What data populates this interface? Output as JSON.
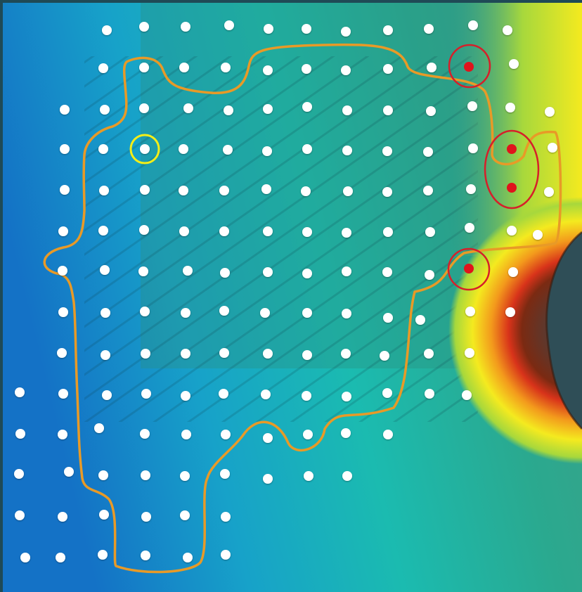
{
  "map": {
    "colors": {
      "frame": "#1f4a56",
      "deep": "#1472c6",
      "mid_blue": "#17a2c9",
      "teal": "#1bbbb0",
      "green_teal": "#2aa98f",
      "yellow_green": "#a7d83c",
      "yellow": "#f4ea1f",
      "orange": "#f39a1c",
      "red": "#d8331a",
      "crater_floor": "#2f4e57",
      "outline": "#e89a27",
      "sample_point": "#ffffff",
      "flagged_point": "#e0141c",
      "flag_ring": "#d61f2a",
      "selected_ring": "#f4ee18"
    },
    "grid_dots": {
      "rows": 14,
      "columns": 12
    },
    "flagged_points_count": 4,
    "selected_point_count": 1,
    "outline_layer": "sampling-boundary",
    "legend": null
  }
}
